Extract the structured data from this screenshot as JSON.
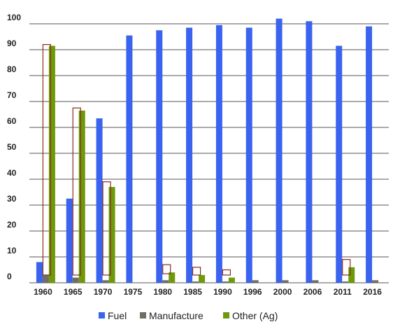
{
  "chart_data": {
    "type": "bar",
    "title": "",
    "xlabel": "",
    "ylabel": "",
    "categories": [
      "1960",
      "1965",
      "1970",
      "1975",
      "1980",
      "1985",
      "1990",
      "1996",
      "2000",
      "2006",
      "2011",
      "2016"
    ],
    "ylim": [
      0,
      100
    ],
    "yticks": [
      0,
      10,
      20,
      30,
      40,
      50,
      60,
      70,
      80,
      90,
      100
    ],
    "grid": true,
    "legend_position": "bottom",
    "series": [
      {
        "name": "Fuel",
        "color": "#3A63F0",
        "values": [
          8,
          32.5,
          63.5,
          0,
          97.5,
          98.5,
          99.5,
          98.5,
          102,
          101,
          91.5,
          99
        ]
      },
      {
        "name": "Manufacture",
        "color": "#6E6E62",
        "values": [
          3,
          2,
          1,
          0,
          1,
          0.5,
          0.5,
          1,
          1,
          1,
          0.5,
          1
        ]
      },
      {
        "name": "Other (Ag)",
        "color": "#6E9A0A",
        "values": [
          91.5,
          66.5,
          37,
          0,
          4,
          3,
          2,
          0,
          0,
          0,
          6,
          0
        ]
      }
    ],
    "fuel_bar_1975": 95.5,
    "outline_boxes": [
      {
        "category": "1960",
        "bottom": 3,
        "top": 92
      },
      {
        "category": "1965",
        "bottom": 3,
        "top": 67.5
      },
      {
        "category": "1970",
        "bottom": 3,
        "top": 39
      },
      {
        "category": "1980",
        "bottom": 3.5,
        "top": 7
      },
      {
        "category": "1985",
        "bottom": 3,
        "top": 6
      },
      {
        "category": "1990",
        "bottom": 3,
        "top": 5
      },
      {
        "category": "2011",
        "bottom": 3,
        "top": 9
      }
    ],
    "outline_color": "#8B2A1E"
  }
}
